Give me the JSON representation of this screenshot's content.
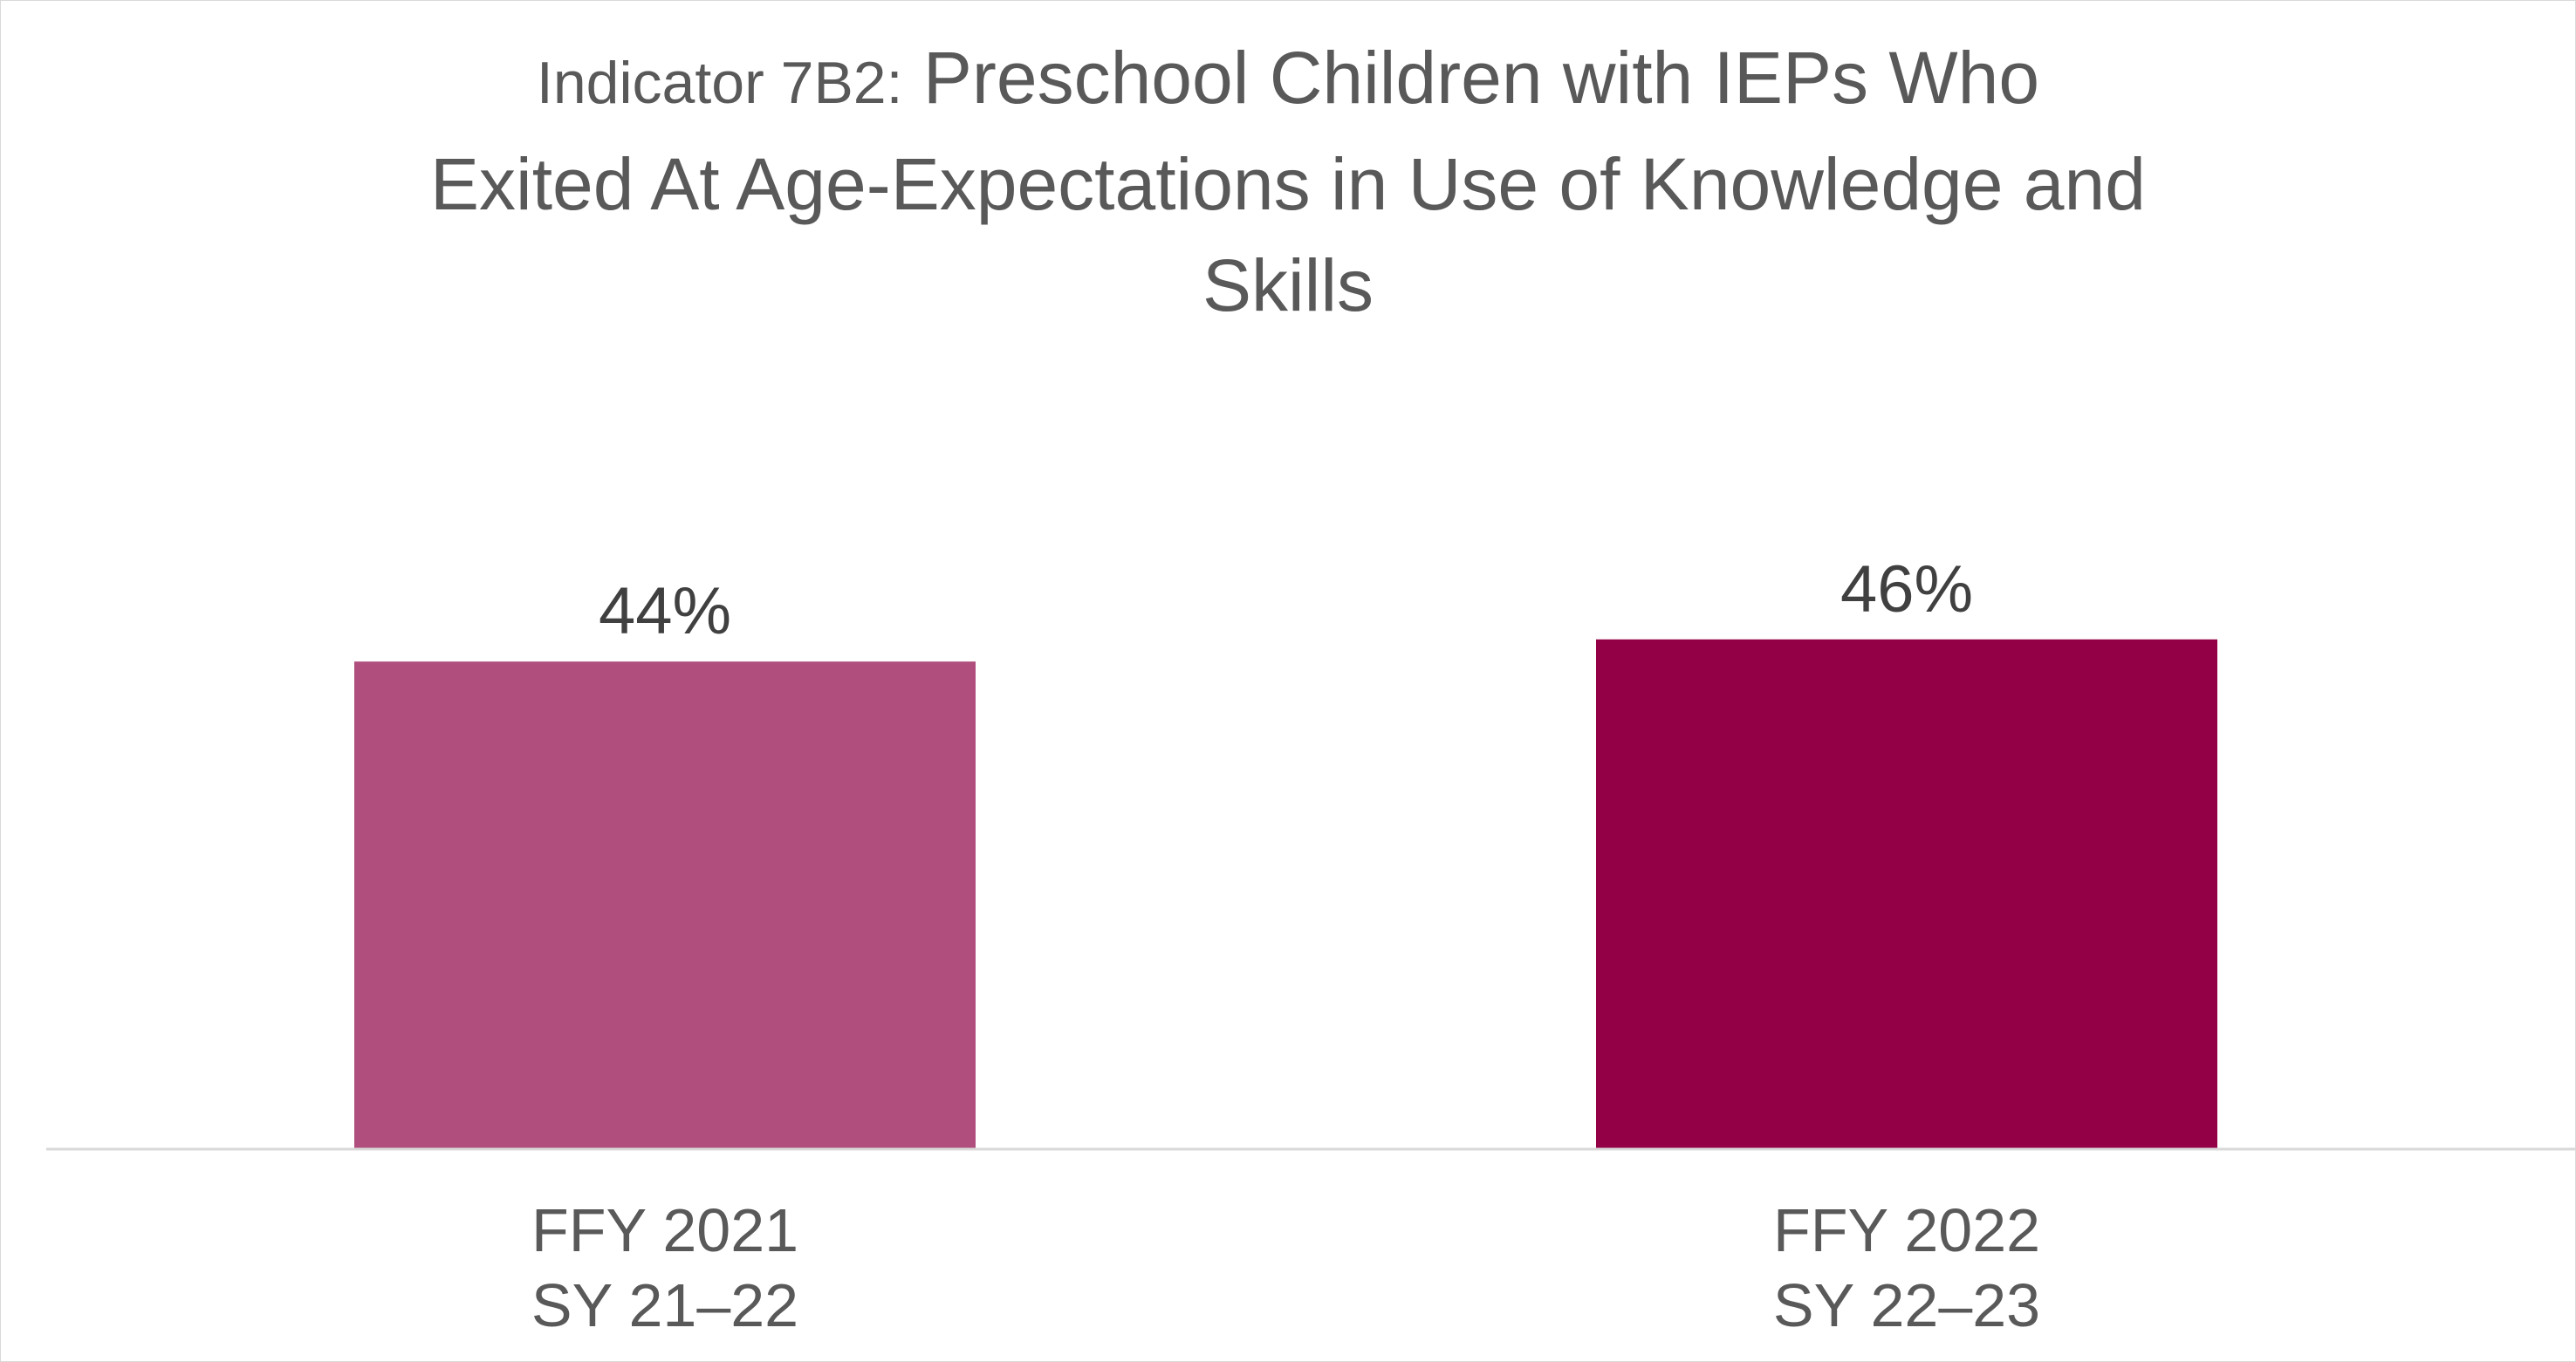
{
  "chart_data": {
    "type": "bar",
    "title_prefix": "Indicator 7B2:",
    "title_lines": [
      "Preschool Children with IEPs Who",
      "Exited At Age-Expectations in Use of Knowledge and",
      "Skills"
    ],
    "categories": [
      [
        "FFY 2021",
        "SY 21–22"
      ],
      [
        "FFY 2022",
        "SY 22–23"
      ]
    ],
    "values": [
      44,
      46
    ],
    "data_labels": [
      "44%",
      "46%"
    ],
    "bar_colors": [
      "#b04e7d",
      "#930045"
    ],
    "xlabel": "",
    "ylabel": "",
    "ylim": [
      0,
      100
    ],
    "grid": false,
    "legend": "none"
  }
}
